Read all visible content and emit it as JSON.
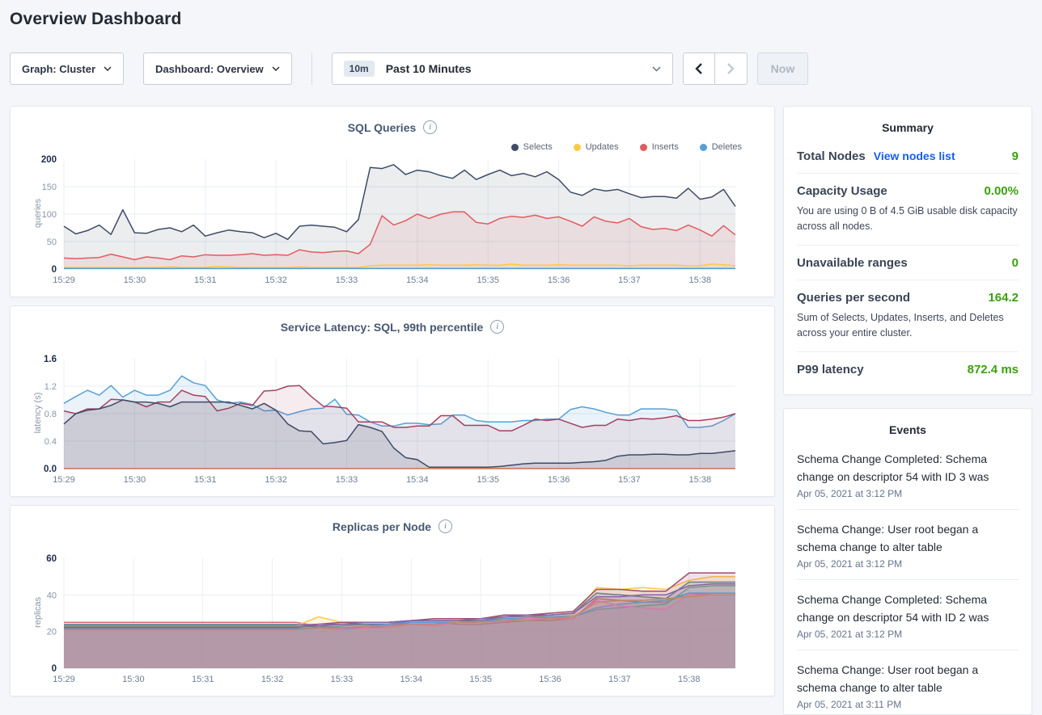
{
  "header": {
    "title": "Overview Dashboard"
  },
  "controls": {
    "graph_label": "Graph: Cluster",
    "dashboard_label": "Dashboard: Overview",
    "range_badge": "10m",
    "range_label": "Past 10 Minutes",
    "now_label": "Now"
  },
  "colors": {
    "page_background": "#f4f6fa",
    "link_blue": "#145fe8",
    "metric_green": "#3aa10e",
    "selects_navy": "#3d4c66",
    "updates_yellow": "#fec944",
    "inserts_red": "#e25b5e",
    "deletes_blue": "#56a0d8"
  },
  "charts": [
    {
      "type": "line",
      "title": "SQL Queries",
      "ylabel": "queries",
      "ylim": [
        0,
        200
      ],
      "yticks": [
        0,
        50,
        100,
        150,
        200
      ],
      "ytick_labels": [
        "0",
        "50",
        "100",
        "150",
        "200"
      ],
      "xticks": [
        "15:29",
        "15:30",
        "15:31",
        "15:32",
        "15:33",
        "15:34",
        "15:35",
        "15:36",
        "15:37",
        "15:38"
      ],
      "seconds_per_point": 10,
      "legend": [
        {
          "label": "Selects",
          "color": "#3d4c66"
        },
        {
          "label": "Updates",
          "color": "#fec944"
        },
        {
          "label": "Inserts",
          "color": "#e25b5e"
        },
        {
          "label": "Deletes",
          "color": "#56a0d8"
        }
      ],
      "series": [
        {
          "name": "Selects",
          "color": "#3d4c66",
          "fill_opacity": 0.1,
          "values": [
            78,
            64,
            70,
            80,
            63,
            108,
            66,
            65,
            72,
            75,
            68,
            80,
            60,
            66,
            71,
            68,
            66,
            57,
            65,
            54,
            78,
            80,
            78,
            76,
            68,
            90,
            185,
            183,
            190,
            172,
            180,
            177,
            170,
            165,
            180,
            163,
            172,
            180,
            170,
            174,
            168,
            177,
            163,
            140,
            134,
            146,
            142,
            145,
            137,
            130,
            132,
            132,
            129,
            147,
            127,
            131,
            145,
            114
          ]
        },
        {
          "name": "Inserts",
          "color": "#e25b5e",
          "fill_opacity": 0.1,
          "values": [
            20,
            19,
            20,
            21,
            27,
            22,
            17,
            22,
            20,
            17,
            24,
            22,
            26,
            25,
            25,
            26,
            28,
            25,
            26,
            25,
            35,
            31,
            30,
            32,
            33,
            28,
            45,
            97,
            80,
            88,
            100,
            92,
            100,
            104,
            104,
            85,
            82,
            92,
            96,
            94,
            98,
            92,
            95,
            87,
            78,
            95,
            87,
            84,
            92,
            77,
            72,
            74,
            70,
            80,
            71,
            60,
            79,
            62
          ]
        },
        {
          "name": "Updates",
          "color": "#fec944",
          "fill_opacity": 0.12,
          "values": [
            3,
            3,
            3,
            3,
            3,
            3,
            3,
            3,
            3,
            4,
            3,
            3,
            3,
            5,
            4,
            3,
            3,
            3,
            3,
            3,
            4,
            3,
            3,
            3,
            3,
            3,
            6,
            7,
            7,
            7,
            7,
            8,
            7,
            7,
            7,
            8,
            7,
            7,
            9,
            7,
            7,
            7,
            8,
            7,
            7,
            7,
            7,
            7,
            6,
            7,
            7,
            7,
            7,
            6,
            6,
            9,
            8,
            6
          ]
        },
        {
          "name": "Deletes",
          "color": "#56a0d8",
          "fill_opacity": 0.12,
          "values": [
            1,
            1,
            1,
            1,
            1,
            1,
            1,
            1,
            1,
            1,
            1,
            1,
            1,
            1,
            1,
            1,
            1,
            1,
            1,
            1,
            1,
            1,
            1,
            1,
            1,
            1,
            1,
            1,
            1,
            1,
            1,
            1,
            1,
            1,
            1,
            1,
            1,
            1,
            1,
            1,
            1,
            1,
            1,
            1,
            1,
            1,
            1,
            1,
            1,
            1,
            1,
            1,
            1,
            1,
            1,
            1,
            1,
            1
          ]
        }
      ]
    },
    {
      "type": "line",
      "title": "Service Latency: SQL, 99th percentile",
      "ylabel": "latency (s)",
      "ylim": [
        0,
        1.6
      ],
      "yticks": [
        0,
        0.4,
        0.8,
        1.2,
        1.6
      ],
      "ytick_labels": [
        "0.0",
        "0.4",
        "0.8",
        "1.2",
        "1.6"
      ],
      "xticks": [
        "15:29",
        "15:30",
        "15:31",
        "15:32",
        "15:33",
        "15:34",
        "15:35",
        "15:36",
        "15:37",
        "15:38"
      ],
      "seconds_per_point": 10,
      "series": [
        {
          "color": "#56a0d8",
          "fill_opacity": 0.12,
          "values": [
            0.95,
            1.05,
            1.14,
            1.07,
            1.21,
            1.04,
            1.14,
            1.07,
            1.07,
            1.14,
            1.35,
            1.25,
            1.21,
            1.0,
            0.95,
            0.97,
            0.93,
            0.84,
            0.85,
            0.78,
            0.83,
            0.87,
            0.88,
            1.01,
            0.79,
            0.78,
            0.68,
            0.62,
            0.62,
            0.66,
            0.66,
            0.64,
            0.65,
            0.78,
            0.78,
            0.7,
            0.68,
            0.68,
            0.68,
            0.7,
            0.7,
            0.72,
            0.72,
            0.86,
            0.9,
            0.87,
            0.82,
            0.78,
            0.78,
            0.87,
            0.87,
            0.87,
            0.85,
            0.6,
            0.6,
            0.62,
            0.7,
            0.8
          ]
        },
        {
          "color": "#a4415f",
          "fill_opacity": 0.1,
          "values": [
            0.84,
            0.8,
            0.87,
            0.87,
            1.01,
            1.0,
            0.97,
            0.9,
            0.97,
            0.97,
            1.14,
            1.07,
            1.05,
            0.84,
            0.88,
            0.95,
            0.92,
            1.13,
            1.14,
            1.2,
            1.21,
            1.05,
            0.91,
            0.9,
            0.88,
            0.68,
            0.68,
            0.68,
            0.6,
            0.6,
            0.62,
            0.62,
            0.77,
            0.77,
            0.63,
            0.63,
            0.63,
            0.55,
            0.55,
            0.63,
            0.72,
            0.7,
            0.72,
            0.66,
            0.6,
            0.63,
            0.63,
            0.72,
            0.7,
            0.73,
            0.72,
            0.74,
            0.77,
            0.7,
            0.7,
            0.72,
            0.75,
            0.8
          ]
        },
        {
          "color": "#3d4c66",
          "fill_opacity": 0.14,
          "values": [
            0.65,
            0.8,
            0.85,
            0.87,
            0.92,
            1.0,
            0.97,
            0.97,
            0.95,
            0.9,
            0.97,
            0.97,
            0.97,
            0.97,
            0.97,
            0.92,
            0.87,
            0.95,
            0.85,
            0.65,
            0.55,
            0.54,
            0.36,
            0.38,
            0.41,
            0.64,
            0.6,
            0.54,
            0.3,
            0.16,
            0.13,
            0.02,
            0.02,
            0.02,
            0.02,
            0.02,
            0.02,
            0.03,
            0.05,
            0.07,
            0.08,
            0.08,
            0.08,
            0.08,
            0.09,
            0.1,
            0.12,
            0.18,
            0.2,
            0.2,
            0.21,
            0.21,
            0.2,
            0.2,
            0.22,
            0.22,
            0.24,
            0.26
          ]
        },
        {
          "color": "#c0734f",
          "fill_opacity": 0,
          "values": [
            0,
            0,
            0,
            0,
            0,
            0,
            0,
            0,
            0,
            0,
            0,
            0,
            0,
            0,
            0,
            0,
            0,
            0,
            0,
            0,
            0,
            0,
            0,
            0,
            0,
            0,
            0,
            0,
            0,
            0,
            0,
            0,
            0,
            0,
            0,
            0,
            0,
            0,
            0,
            0,
            0,
            0,
            0,
            0,
            0,
            0,
            0,
            0,
            0,
            0,
            0,
            0,
            0,
            0,
            0,
            0,
            0,
            0
          ]
        }
      ]
    },
    {
      "type": "line",
      "title": "Replicas per Node",
      "ylabel": "replicas",
      "ylim": [
        0,
        60
      ],
      "yticks": [
        0,
        20,
        40,
        60
      ],
      "ytick_labels": [
        "0",
        "20",
        "40",
        "60"
      ],
      "xticks": [
        "15:29",
        "15:30",
        "15:31",
        "15:32",
        "15:33",
        "15:34",
        "15:35",
        "15:36",
        "15:37",
        "15:38"
      ],
      "seconds_per_point": 20,
      "series": [
        {
          "color": "#e0696b",
          "fill_opacity": 0.16,
          "values": [
            25,
            25,
            25,
            25,
            25,
            25,
            25,
            25,
            25,
            25,
            25,
            23,
            22,
            22,
            23,
            25,
            25,
            24,
            24,
            25,
            26,
            26,
            27,
            38,
            37,
            36,
            36,
            41,
            40,
            40
          ]
        },
        {
          "color": "#fec944",
          "fill_opacity": 0.16,
          "values": [
            23,
            23,
            23,
            23,
            23,
            23,
            23,
            23,
            23,
            23,
            23,
            28,
            25,
            25,
            25,
            26,
            26,
            26,
            26,
            28,
            28,
            28,
            29,
            44,
            43,
            44,
            43,
            48,
            50,
            50
          ]
        },
        {
          "color": "#64b891",
          "fill_opacity": 0.16,
          "values": [
            24,
            24,
            24,
            24,
            24,
            24,
            24,
            24,
            24,
            24,
            24,
            22,
            23,
            24,
            24,
            25,
            25,
            25,
            26,
            27,
            27,
            28,
            28,
            32,
            33,
            34,
            35,
            44,
            45,
            45
          ]
        },
        {
          "color": "#9e4c6e",
          "fill_opacity": 0.16,
          "values": [
            22,
            22,
            22,
            22,
            22,
            22,
            22,
            22,
            22,
            22,
            22,
            24,
            25,
            25,
            25,
            26,
            27,
            27,
            27,
            29,
            29,
            30,
            31,
            43,
            43,
            42,
            42,
            52,
            52,
            52
          ]
        },
        {
          "color": "#6f7a8a",
          "fill_opacity": 0.16,
          "values": [
            22.5,
            22.5,
            22.5,
            22.5,
            22.5,
            22.5,
            22.5,
            22.5,
            22.5,
            22.5,
            22.5,
            23,
            24,
            24,
            24,
            26,
            26,
            26,
            26,
            28,
            28,
            29,
            30,
            41,
            40,
            39,
            38,
            47,
            47,
            47
          ]
        },
        {
          "color": "#56a0d8",
          "fill_opacity": 0.16,
          "values": [
            21.5,
            21.5,
            21.5,
            21.5,
            21.5,
            21.5,
            21.5,
            21.5,
            21.5,
            21.5,
            21.5,
            22,
            21,
            23,
            24,
            25,
            25,
            25,
            25,
            27,
            27,
            28,
            28,
            33,
            35,
            36,
            37,
            41,
            41,
            41
          ]
        },
        {
          "color": "#ee7eb2",
          "fill_opacity": 0.16,
          "values": [
            21,
            21,
            21,
            21,
            21,
            21,
            21,
            21,
            21,
            21,
            21,
            22,
            21,
            22,
            22,
            24,
            23,
            25,
            25,
            26,
            27,
            27,
            27,
            37,
            34,
            33,
            32,
            40,
            40,
            40
          ]
        },
        {
          "color": "#8763a8",
          "fill_opacity": 0.16,
          "values": [
            23.5,
            23.5,
            23.5,
            23.5,
            23.5,
            23.5,
            23.5,
            23.5,
            23.5,
            23.5,
            23.5,
            24,
            24,
            25,
            25,
            26,
            26,
            26,
            27,
            28,
            29,
            29,
            30,
            39,
            39,
            40,
            40,
            45,
            46,
            46
          ]
        },
        {
          "color": "#b98a6f",
          "fill_opacity": 0.16,
          "values": [
            21,
            21,
            21,
            21,
            21,
            21,
            21,
            21,
            21,
            21,
            21,
            22,
            22,
            23,
            23,
            24,
            24,
            25,
            25,
            26,
            26,
            27,
            28,
            36,
            37,
            37,
            38,
            39,
            40,
            40
          ]
        }
      ]
    }
  ],
  "summary": {
    "title": "Summary",
    "rows": [
      {
        "label": "Total Nodes",
        "link": "View nodes list",
        "value": "9"
      },
      {
        "label": "Capacity Usage",
        "value": "0.00%",
        "desc": "You are using 0 B of 4.5 GiB usable disk capacity across all nodes."
      },
      {
        "label": "Unavailable ranges",
        "value": "0"
      },
      {
        "label": "Queries per second",
        "value": "164.2",
        "desc": "Sum of Selects, Updates, Inserts, and Deletes across your entire cluster."
      },
      {
        "label": "P99 latency",
        "value": "872.4 ms"
      }
    ]
  },
  "events": {
    "title": "Events",
    "items": [
      {
        "text": "Schema Change Completed: Schema change on descriptor 54 with ID 3 was",
        "time": "Apr 05, 2021 at 3:12 PM"
      },
      {
        "text": "Schema Change: User root began a schema change to alter table",
        "time": "Apr 05, 2021 at 3:12 PM"
      },
      {
        "text": "Schema Change Completed: Schema change on descriptor 54 with ID 2 was",
        "time": "Apr 05, 2021 at 3:12 PM"
      },
      {
        "text": "Schema Change: User root began a schema change to alter table",
        "time": "Apr 05, 2021 at 3:11 PM"
      }
    ]
  }
}
